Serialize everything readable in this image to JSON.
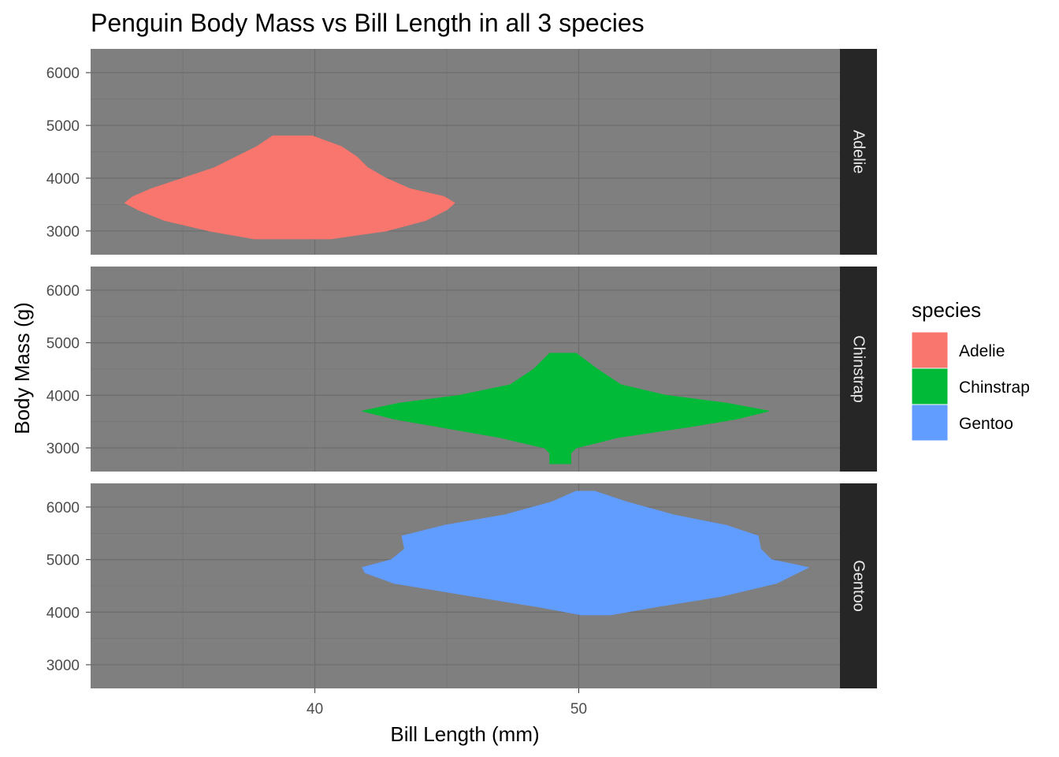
{
  "chart_data": {
    "type": "violin",
    "title": "Penguin Body Mass vs Bill Length in all 3 species",
    "xlabel": "Bill Length (mm)",
    "ylabel": "Body Mass (g)",
    "xlim": [
      31.5,
      59.9
    ],
    "ylim": [
      2550,
      6450
    ],
    "x_ticks": [
      40,
      50
    ],
    "y_ticks": [
      3000,
      4000,
      5000,
      6000
    ],
    "grid": true,
    "legend": {
      "title": "species",
      "position": "right"
    },
    "facet_strips": [
      "Adelie",
      "Chinstrap",
      "Gentoo"
    ],
    "colors": {
      "Adelie": "#F8766D",
      "Chinstrap": "#00BA38",
      "Gentoo": "#619CFF",
      "panel": "#7f7f7f",
      "strip": "#262626",
      "grid": "#6e6e6e"
    },
    "series": [
      {
        "name": "Adelie",
        "profile": [
          [
            2850,
            37.7,
            40.6
          ],
          [
            3000,
            36.0,
            42.7
          ],
          [
            3200,
            34.3,
            44.2
          ],
          [
            3400,
            33.3,
            45.0
          ],
          [
            3530,
            32.8,
            45.3
          ],
          [
            3650,
            33.1,
            44.9
          ],
          [
            3800,
            33.8,
            43.6
          ],
          [
            4000,
            35.0,
            42.7
          ],
          [
            4200,
            36.2,
            42.0
          ],
          [
            4400,
            37.0,
            41.6
          ],
          [
            4600,
            37.8,
            41.0
          ],
          [
            4800,
            38.4,
            39.9
          ]
        ]
      },
      {
        "name": "Chinstrap",
        "profile": [
          [
            2700,
            48.9,
            49.7
          ],
          [
            2900,
            48.9,
            49.7
          ],
          [
            3000,
            48.7,
            49.9
          ],
          [
            3200,
            47.0,
            51.5
          ],
          [
            3400,
            44.7,
            54.2
          ],
          [
            3550,
            43.0,
            56.0
          ],
          [
            3700,
            41.8,
            57.2
          ],
          [
            3850,
            43.2,
            55.6
          ],
          [
            4000,
            45.5,
            53.3
          ],
          [
            4200,
            47.4,
            51.6
          ],
          [
            4500,
            48.3,
            50.7
          ],
          [
            4800,
            48.9,
            49.9
          ]
        ]
      },
      {
        "name": "Gentoo",
        "profile": [
          [
            3950,
            50.1,
            51.2
          ],
          [
            4100,
            48.5,
            52.9
          ],
          [
            4300,
            46.0,
            55.4
          ],
          [
            4550,
            43.0,
            57.5
          ],
          [
            4750,
            41.9,
            58.3
          ],
          [
            4850,
            41.8,
            58.7
          ],
          [
            5000,
            42.9,
            57.3
          ],
          [
            5200,
            43.4,
            56.9
          ],
          [
            5450,
            43.3,
            56.8
          ],
          [
            5650,
            44.9,
            55.6
          ],
          [
            5850,
            47.2,
            53.6
          ],
          [
            6100,
            49.0,
            51.8
          ],
          [
            6300,
            49.9,
            50.6
          ]
        ]
      }
    ]
  }
}
